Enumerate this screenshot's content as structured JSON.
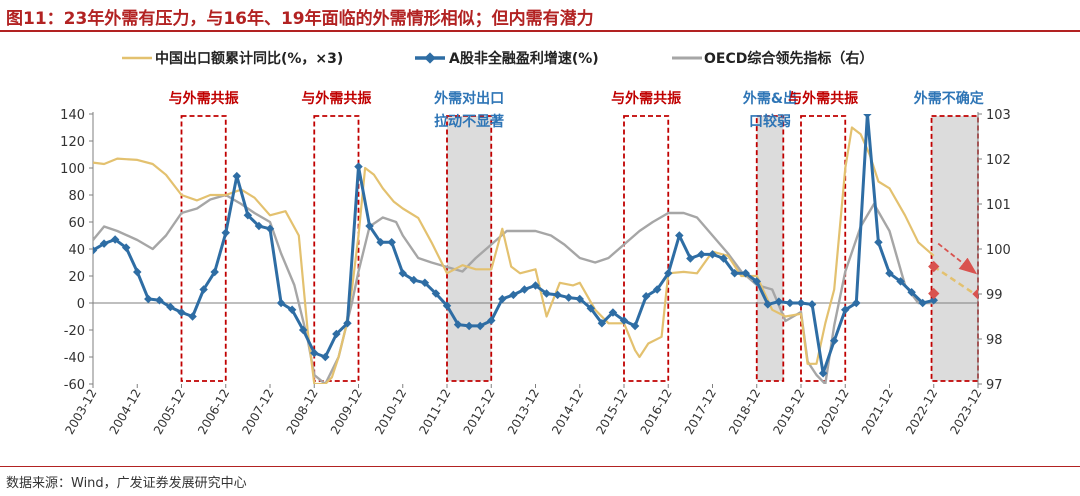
{
  "title": "图11：23年外需有压力，与16年、19年面临的外需情形相似；但内需有潜力",
  "source": "数据来源：Wind，广发证券发展研究中心",
  "colors": {
    "export": "#E3C16F",
    "profit": "#2E6DA4",
    "oecd": "#A6A6A6",
    "annotation_red": "#C00000",
    "annotation_blue": "#2E75B6",
    "forecast_red": "#D9534F"
  },
  "chart_data": {
    "type": "line",
    "title": "图11：23年外需有压力，与16年、19年面临的外需情形相似；但内需有潜力",
    "xlabel": "",
    "ylabel_left": "",
    "ylabel_right": "",
    "ylim_left": [
      -60,
      140
    ],
    "ylim_right": [
      97,
      103
    ],
    "yticks_left": [
      "140",
      "120",
      "100",
      "80",
      "60",
      "40",
      "20",
      "0",
      "-20",
      "-40",
      "-60"
    ],
    "yticks_right": [
      "103",
      "102",
      "101",
      "100",
      "99",
      "98",
      "97"
    ],
    "x_tick_labels": [
      "2003-12",
      "2004-12",
      "2005-12",
      "2006-12",
      "2007-12",
      "2008-12",
      "2009-12",
      "2010-12",
      "2011-12",
      "2012-12",
      "2013-12",
      "2014-12",
      "2015-12",
      "2016-12",
      "2017-12",
      "2018-12",
      "2019-12",
      "2020-12",
      "2021-12",
      "2022-12",
      "2023-12"
    ],
    "x_range": [
      2003.95,
      2023.95
    ],
    "legend": [
      "中国出口额累计同比(%，×3)",
      "A股非全融盈利增速(%)",
      "OECD综合领先指标（右）"
    ],
    "series": [
      {
        "name": "中国出口额累计同比(%，×3)",
        "axis": "left",
        "x": [
          2003.95,
          2004.2,
          2004.5,
          2004.95,
          2005.3,
          2005.6,
          2005.95,
          2006.3,
          2006.6,
          2006.95,
          2007.3,
          2007.6,
          2007.95,
          2008.3,
          2008.6,
          2008.8,
          2008.95,
          2009.05,
          2009.2,
          2009.35,
          2009.5,
          2009.65,
          2009.8,
          2009.95,
          2010.1,
          2010.3,
          2010.5,
          2010.75,
          2010.95,
          2011.3,
          2011.6,
          2011.95,
          2012.3,
          2012.6,
          2012.95,
          2013.2,
          2013.4,
          2013.6,
          2013.95,
          2014.2,
          2014.5,
          2014.8,
          2014.95,
          2015.3,
          2015.6,
          2015.95,
          2016.2,
          2016.3,
          2016.5,
          2016.8,
          2016.95,
          2017.3,
          2017.6,
          2017.95,
          2018.3,
          2018.6,
          2018.95,
          2019.3,
          2019.6,
          2019.95,
          2020.1,
          2020.3,
          2020.5,
          2020.7,
          2020.95,
          2021.1,
          2021.3,
          2021.5,
          2021.7,
          2021.95,
          2022.3,
          2022.6,
          2022.95
        ],
        "values": [
          104,
          103,
          107,
          106,
          103,
          95,
          80,
          76,
          80,
          80,
          84,
          78,
          65,
          68,
          50,
          -20,
          -60,
          -60,
          -60,
          -55,
          -40,
          -20,
          10,
          50,
          100,
          95,
          85,
          75,
          70,
          63,
          45,
          22,
          28,
          25,
          25,
          55,
          27,
          22,
          25,
          -10,
          15,
          13,
          15,
          -5,
          -15,
          -15,
          -35,
          -40,
          -30,
          -25,
          22,
          23,
          22,
          38,
          35,
          20,
          20,
          -5,
          -10,
          -8,
          -45,
          -45,
          -15,
          10,
          100,
          130,
          125,
          110,
          90,
          85,
          65,
          45,
          35
        ]
      },
      {
        "name": "A股非全融盈利增速(%)",
        "axis": "left",
        "x": [
          2003.95,
          2004.2,
          2004.45,
          2004.7,
          2004.95,
          2005.2,
          2005.45,
          2005.7,
          2005.95,
          2006.2,
          2006.45,
          2006.7,
          2006.95,
          2007.2,
          2007.45,
          2007.7,
          2007.95,
          2008.2,
          2008.45,
          2008.7,
          2008.95,
          2009.2,
          2009.45,
          2009.7,
          2009.95,
          2010.2,
          2010.45,
          2010.7,
          2010.95,
          2011.2,
          2011.45,
          2011.7,
          2011.95,
          2012.2,
          2012.45,
          2012.7,
          2012.95,
          2013.2,
          2013.45,
          2013.7,
          2013.95,
          2014.2,
          2014.45,
          2014.7,
          2014.95,
          2015.2,
          2015.45,
          2015.7,
          2015.95,
          2016.2,
          2016.45,
          2016.7,
          2016.95,
          2017.2,
          2017.45,
          2017.7,
          2017.95,
          2018.2,
          2018.45,
          2018.7,
          2018.95,
          2019.2,
          2019.45,
          2019.7,
          2019.95,
          2020.2,
          2020.45,
          2020.7,
          2020.95,
          2021.2,
          2021.45,
          2021.7,
          2021.95,
          2022.2,
          2022.45,
          2022.7,
          2022.95
        ],
        "values": [
          39,
          44,
          47,
          41,
          23,
          3,
          2,
          -3,
          -7,
          -10,
          10,
          23,
          52,
          94,
          65,
          57,
          55,
          0,
          -5,
          -20,
          -37,
          -40,
          -23,
          -15,
          101,
          57,
          45,
          45,
          22,
          17,
          15,
          7,
          -2,
          -16,
          -17,
          -17,
          -13,
          3,
          6,
          10,
          13,
          7,
          6,
          4,
          3,
          -4,
          -15,
          -7,
          -13,
          -17,
          5,
          10,
          22,
          50,
          33,
          36,
          36,
          33,
          22,
          22,
          16,
          -1,
          1,
          0,
          0,
          -1,
          -52,
          -28,
          -5,
          0,
          140,
          45,
          22,
          16,
          8,
          0,
          2
        ]
      },
      {
        "name": "OECD综合领先指标（右）",
        "axis": "right",
        "x": [
          2003.95,
          2004.2,
          2004.5,
          2004.95,
          2005.3,
          2005.6,
          2005.95,
          2006.3,
          2006.6,
          2006.95,
          2007.3,
          2007.6,
          2007.95,
          2008.2,
          2008.5,
          2008.8,
          2008.95,
          2009.2,
          2009.5,
          2009.8,
          2009.95,
          2010.2,
          2010.5,
          2010.8,
          2010.95,
          2011.3,
          2011.6,
          2011.95,
          2012.3,
          2012.6,
          2012.95,
          2013.3,
          2013.6,
          2013.95,
          2014.3,
          2014.6,
          2014.95,
          2015.3,
          2015.6,
          2015.95,
          2016.3,
          2016.6,
          2016.95,
          2017.3,
          2017.6,
          2017.95,
          2018.3,
          2018.6,
          2018.95,
          2019.3,
          2019.6,
          2019.95,
          2020.1,
          2020.3,
          2020.5,
          2020.7,
          2020.95,
          2021.3,
          2021.6,
          2021.95,
          2022.3,
          2022.6,
          2022.95
        ],
        "values": [
          100.2,
          100.5,
          100.4,
          100.2,
          100.0,
          100.3,
          100.8,
          100.9,
          101.1,
          101.2,
          101.0,
          100.8,
          100.6,
          99.9,
          99.2,
          98.0,
          97.2,
          97.0,
          97.6,
          98.8,
          99.5,
          100.5,
          100.7,
          100.6,
          100.3,
          99.8,
          99.7,
          99.6,
          99.5,
          99.8,
          100.1,
          100.4,
          100.4,
          100.4,
          100.3,
          100.1,
          99.8,
          99.7,
          99.8,
          100.1,
          100.4,
          100.6,
          100.8,
          100.8,
          100.7,
          100.3,
          99.9,
          99.5,
          99.2,
          99.1,
          98.4,
          98.6,
          97.5,
          97.2,
          97.0,
          98.3,
          99.5,
          100.5,
          101.0,
          100.4,
          99.2,
          98.8,
          98.8
        ]
      }
    ],
    "forecast": [
      {
        "name": "export_forecast",
        "axis": "left",
        "x": [
          2022.95,
          2023.95
        ],
        "values": [
          27,
          5
        ]
      },
      {
        "name": "profit_forecast",
        "axis": "left",
        "x": [
          2022.95
        ],
        "values": [
          7
        ]
      },
      {
        "name": "oecd_forecast",
        "axis": "right",
        "x": [
          2023.95
        ],
        "values": [
          99.0
        ]
      }
    ],
    "regions": [
      {
        "label": "与外需共振",
        "x": [
          2005.95,
          2006.95
        ],
        "shaded": false,
        "label_color": "red"
      },
      {
        "label": "与外需共振",
        "x": [
          2008.95,
          2009.95
        ],
        "shaded": false,
        "label_color": "red"
      },
      {
        "label": "外需对出口拉动不显著",
        "x": [
          2011.95,
          2012.95
        ],
        "shaded": true,
        "label_color": "blue"
      },
      {
        "label": "与外需共振",
        "x": [
          2015.95,
          2016.95
        ],
        "shaded": false,
        "label_color": "red"
      },
      {
        "label": "外需&出口较弱",
        "x": [
          2018.95,
          2019.55
        ],
        "shaded": true,
        "label_color": "blue"
      },
      {
        "label": "与外需共振",
        "x": [
          2019.95,
          2020.95
        ],
        "shaded": false,
        "label_color": "red"
      },
      {
        "label": "外需不确定",
        "x": [
          2022.9,
          2023.95
        ],
        "shaded": true,
        "label_color": "blue"
      }
    ],
    "annotation_lines": [
      [
        "外需对出口",
        "拉动不显著"
      ],
      [
        "外需&出",
        "口较弱"
      ]
    ]
  }
}
